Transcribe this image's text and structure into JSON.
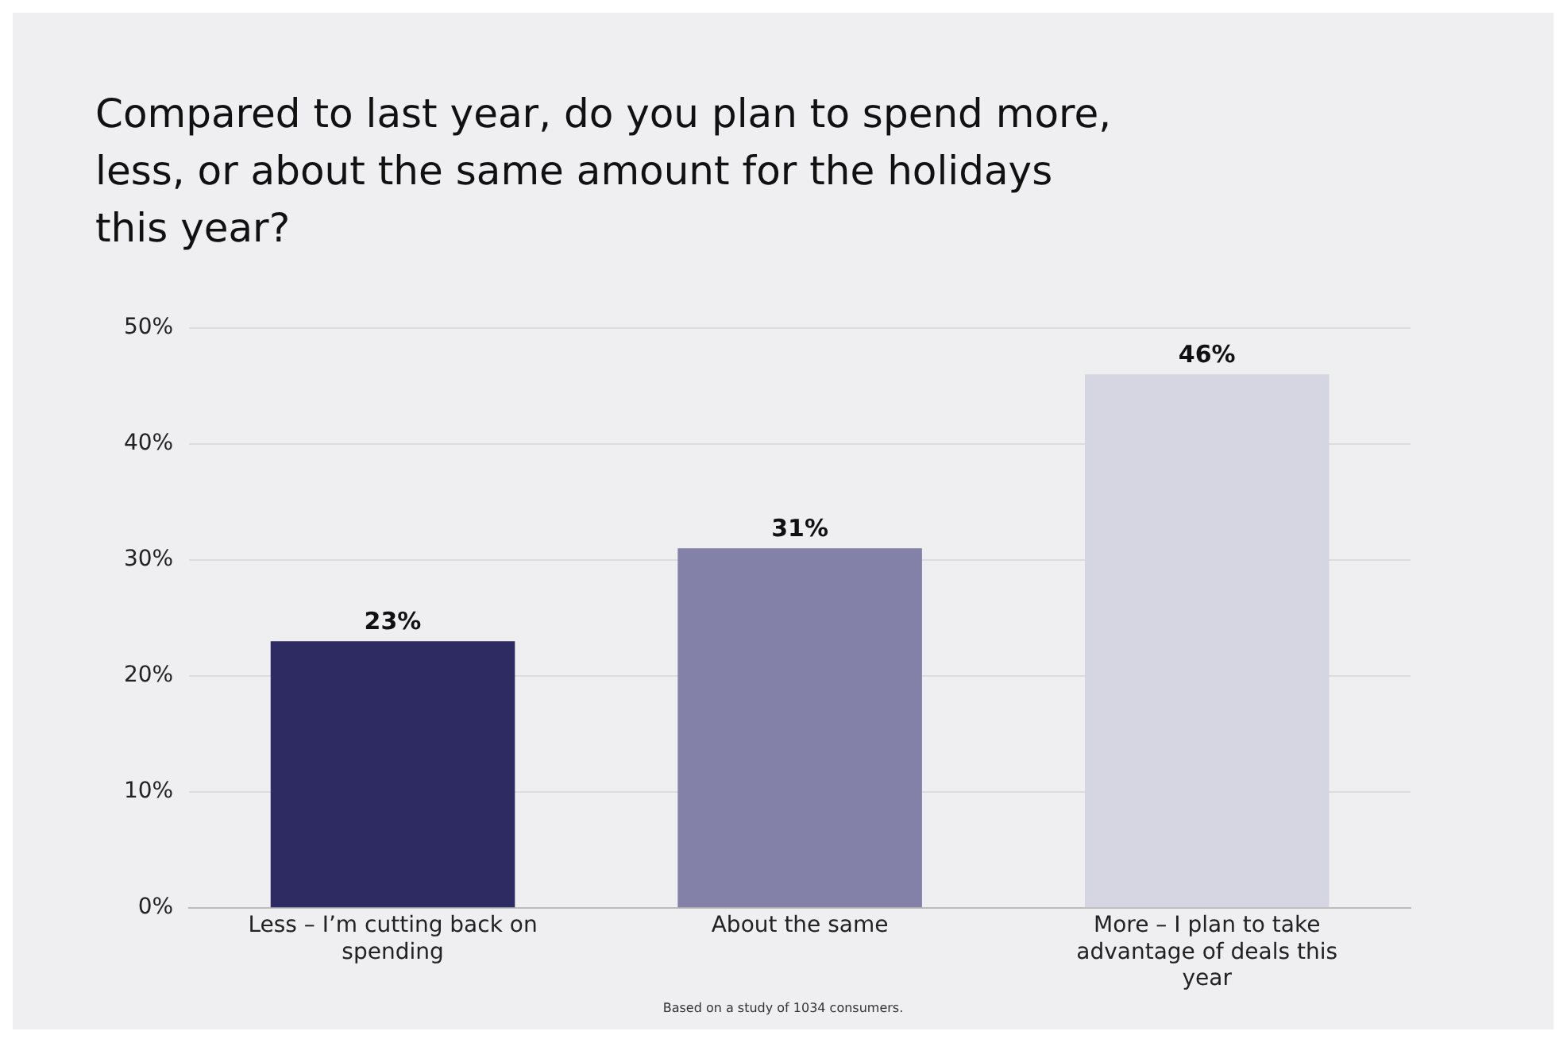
{
  "chart_data": {
    "type": "bar",
    "title": "Compared to last year, do you plan to spend more, less, or about the same amount for the holidays this year?",
    "categories": [
      "Less – I’m cutting back on spending",
      "About the same",
      "More – I plan to take advantage of deals this year"
    ],
    "values": [
      23,
      31,
      46
    ],
    "colors": [
      "#2e2b62",
      "#8381a7",
      "#d6d6e3"
    ],
    "value_labels": [
      "23%",
      "31%",
      "46%"
    ],
    "ylim": [
      0,
      50
    ],
    "yticks": [
      {
        "value": 0,
        "label": "0%"
      },
      {
        "value": 10,
        "label": "10%"
      },
      {
        "value": 20,
        "label": "20%"
      },
      {
        "value": 30,
        "label": "30%"
      },
      {
        "value": 40,
        "label": "40%"
      },
      {
        "value": 50,
        "label": "50%"
      }
    ],
    "grid": "y",
    "annotations": [
      "Based on a study of 1034 consumers."
    ]
  }
}
